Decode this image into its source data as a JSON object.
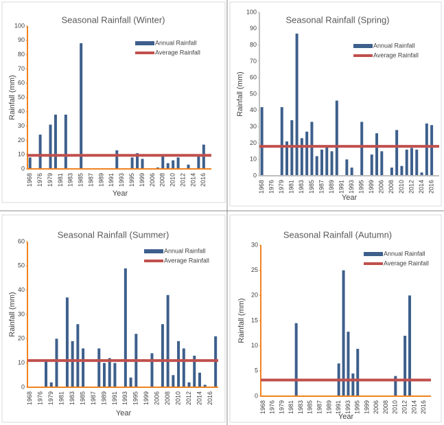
{
  "chart_data": [
    {
      "type": "bar",
      "title": "Seasonal Rainfall (Winter)",
      "x_label": "Year",
      "y_label": "Rainfall (mm)",
      "categories": [
        "1968",
        null,
        "1976",
        null,
        "1979",
        null,
        "1981",
        null,
        "1983",
        null,
        "1985",
        null,
        "1987",
        null,
        "1989",
        null,
        "1991",
        null,
        "1993",
        null,
        "1995",
        null,
        "1999",
        null,
        "2006",
        null,
        "2008",
        null,
        "2010",
        null,
        "2012",
        null,
        "2014",
        null,
        "2016",
        null
      ],
      "series": [
        {
          "name": "Annual Rainfall",
          "color": "#3d5f8c",
          "values": [
            8,
            0,
            24,
            0,
            31,
            38,
            0,
            38,
            0,
            0,
            88,
            0,
            0,
            0,
            0,
            0,
            0,
            13,
            0,
            0,
            8,
            11,
            7,
            0,
            0,
            1,
            9,
            4,
            6,
            8,
            0,
            3,
            0,
            9,
            17,
            0
          ]
        }
      ],
      "average": {
        "name": "Average Rainfall",
        "color": "#c0504d",
        "value": 9.5
      },
      "ylim": [
        0,
        100
      ],
      "yticks": [
        0,
        10,
        20,
        30,
        40,
        50,
        60,
        70,
        80,
        90,
        100
      ],
      "axis_color": "#f0821e"
    },
    {
      "type": "bar",
      "title": "Seasonal Rainfall (Spring)",
      "x_label": "Year",
      "y_label": "Rainfall (mm)",
      "categories": [
        "1968",
        null,
        "1976",
        null,
        "1979",
        null,
        "1981",
        null,
        "1983",
        null,
        "1985",
        null,
        "1987",
        null,
        "1989",
        null,
        "1991",
        null,
        "1993",
        null,
        "1995",
        null,
        "1999",
        null,
        "2006",
        null,
        "2008",
        null,
        "2010",
        null,
        "2012",
        null,
        "2014",
        null,
        "2016",
        null
      ],
      "series": [
        {
          "name": "Annual Rainfall",
          "color": "#3d5f8c",
          "values": [
            42,
            0,
            0,
            0,
            42,
            21,
            34,
            87,
            23,
            27,
            33,
            12,
            16,
            18,
            15,
            46,
            0,
            10,
            5,
            0,
            33,
            0,
            13,
            26,
            15,
            0,
            5,
            28,
            6,
            16,
            17,
            16,
            2,
            32,
            31,
            0
          ]
        }
      ],
      "average": {
        "name": "Average Rainfall",
        "color": "#c0504d",
        "value": 18
      },
      "ylim": [
        0,
        100
      ],
      "yticks": [
        0,
        10,
        20,
        30,
        40,
        50,
        60,
        70,
        80,
        90,
        100
      ],
      "axis_color": "#bfbfbf"
    },
    {
      "type": "bar",
      "title": "Seasonal Rainfall (Summer)",
      "x_label": "Year",
      "y_label": "Rainfall (mm)",
      "categories": [
        "1968",
        null,
        "1976",
        null,
        "1979",
        null,
        "1981",
        null,
        "1983",
        null,
        "1985",
        null,
        "1987",
        null,
        "1989",
        null,
        "1991",
        null,
        "1993",
        null,
        "1995",
        null,
        "1999",
        null,
        "2006",
        null,
        "2008",
        null,
        "2010",
        null,
        "2012",
        null,
        "2014",
        null,
        "2016",
        null
      ],
      "series": [
        {
          "name": "Annual Rainfall",
          "color": "#3d5f8c",
          "values": [
            0,
            0,
            0,
            11,
            2,
            20,
            0,
            37,
            19,
            26,
            16,
            0,
            0,
            16,
            10,
            12,
            10,
            0,
            49,
            4,
            22,
            0,
            0,
            14,
            0,
            26,
            38,
            5,
            19,
            16,
            2,
            13,
            6,
            1,
            0,
            21
          ]
        }
      ],
      "average": {
        "name": "Average Rainfall",
        "color": "#c0504d",
        "value": 11
      },
      "ylim": [
        0,
        60
      ],
      "yticks": [
        0,
        10,
        20,
        30,
        40,
        50,
        60
      ],
      "axis_color": "#f0821e"
    },
    {
      "type": "bar",
      "title": "Seasonal Rainfall (Autumn)",
      "x_label": "Year",
      "y_label": "Rainfall (mm)",
      "categories": [
        "1968",
        null,
        "1976",
        null,
        "1979",
        null,
        "1981",
        null,
        "1983",
        null,
        "1985",
        null,
        "1987",
        null,
        "1989",
        null,
        "1991",
        null,
        "1993",
        null,
        "1995",
        null,
        "1999",
        null,
        "2006",
        null,
        "2008",
        null,
        "2010",
        null,
        "2012",
        null,
        "2014",
        null,
        "2016",
        null
      ],
      "series": [
        {
          "name": "Annual Rainfall",
          "color": "#3d5f8c",
          "values": [
            0,
            0,
            0,
            0,
            0,
            0,
            0,
            14.5,
            0,
            0,
            0,
            0,
            0,
            0,
            0,
            0,
            6.5,
            25,
            12.8,
            4.5,
            9.4,
            0,
            0,
            0,
            0,
            0,
            0,
            0,
            4,
            0,
            12,
            20,
            0,
            0,
            0,
            0
          ]
        }
      ],
      "average": {
        "name": "Average Rainfall",
        "color": "#c0504d",
        "value": 3.2
      },
      "ylim": [
        0,
        30
      ],
      "yticks": [
        0,
        5,
        10,
        15,
        20,
        25,
        30
      ],
      "axis_color": "#f0821e"
    }
  ]
}
